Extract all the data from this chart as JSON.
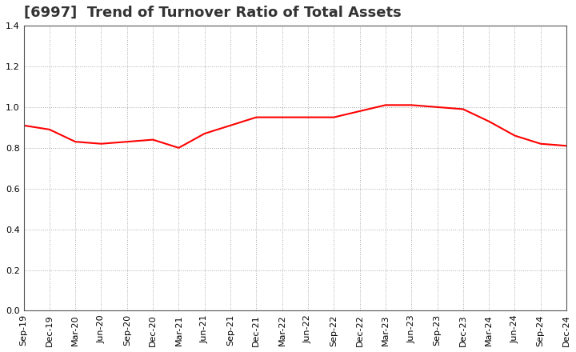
{
  "title": "[6997]  Trend of Turnover Ratio of Total Assets",
  "x_labels": [
    "Sep-19",
    "Dec-19",
    "Mar-20",
    "Jun-20",
    "Sep-20",
    "Dec-20",
    "Mar-21",
    "Jun-21",
    "Sep-21",
    "Dec-21",
    "Mar-22",
    "Jun-22",
    "Sep-22",
    "Dec-22",
    "Mar-23",
    "Jun-23",
    "Sep-23",
    "Dec-23",
    "Mar-24",
    "Jun-24",
    "Sep-24",
    "Dec-24"
  ],
  "y_values": [
    0.91,
    0.89,
    0.83,
    0.82,
    0.83,
    0.84,
    0.8,
    0.87,
    0.91,
    0.95,
    0.95,
    0.95,
    0.95,
    0.98,
    1.01,
    1.01,
    1.0,
    0.99,
    0.93,
    0.86,
    0.82,
    0.81
  ],
  "line_color": "#FF0000",
  "line_width": 1.5,
  "ylim": [
    0.0,
    1.4
  ],
  "yticks": [
    0.0,
    0.2,
    0.4,
    0.6,
    0.8,
    1.0,
    1.2,
    1.4
  ],
  "grid_color": "#aaaaaa",
  "background_color": "#ffffff",
  "title_fontsize": 13,
  "tick_fontsize": 8,
  "title_color": "#333333"
}
